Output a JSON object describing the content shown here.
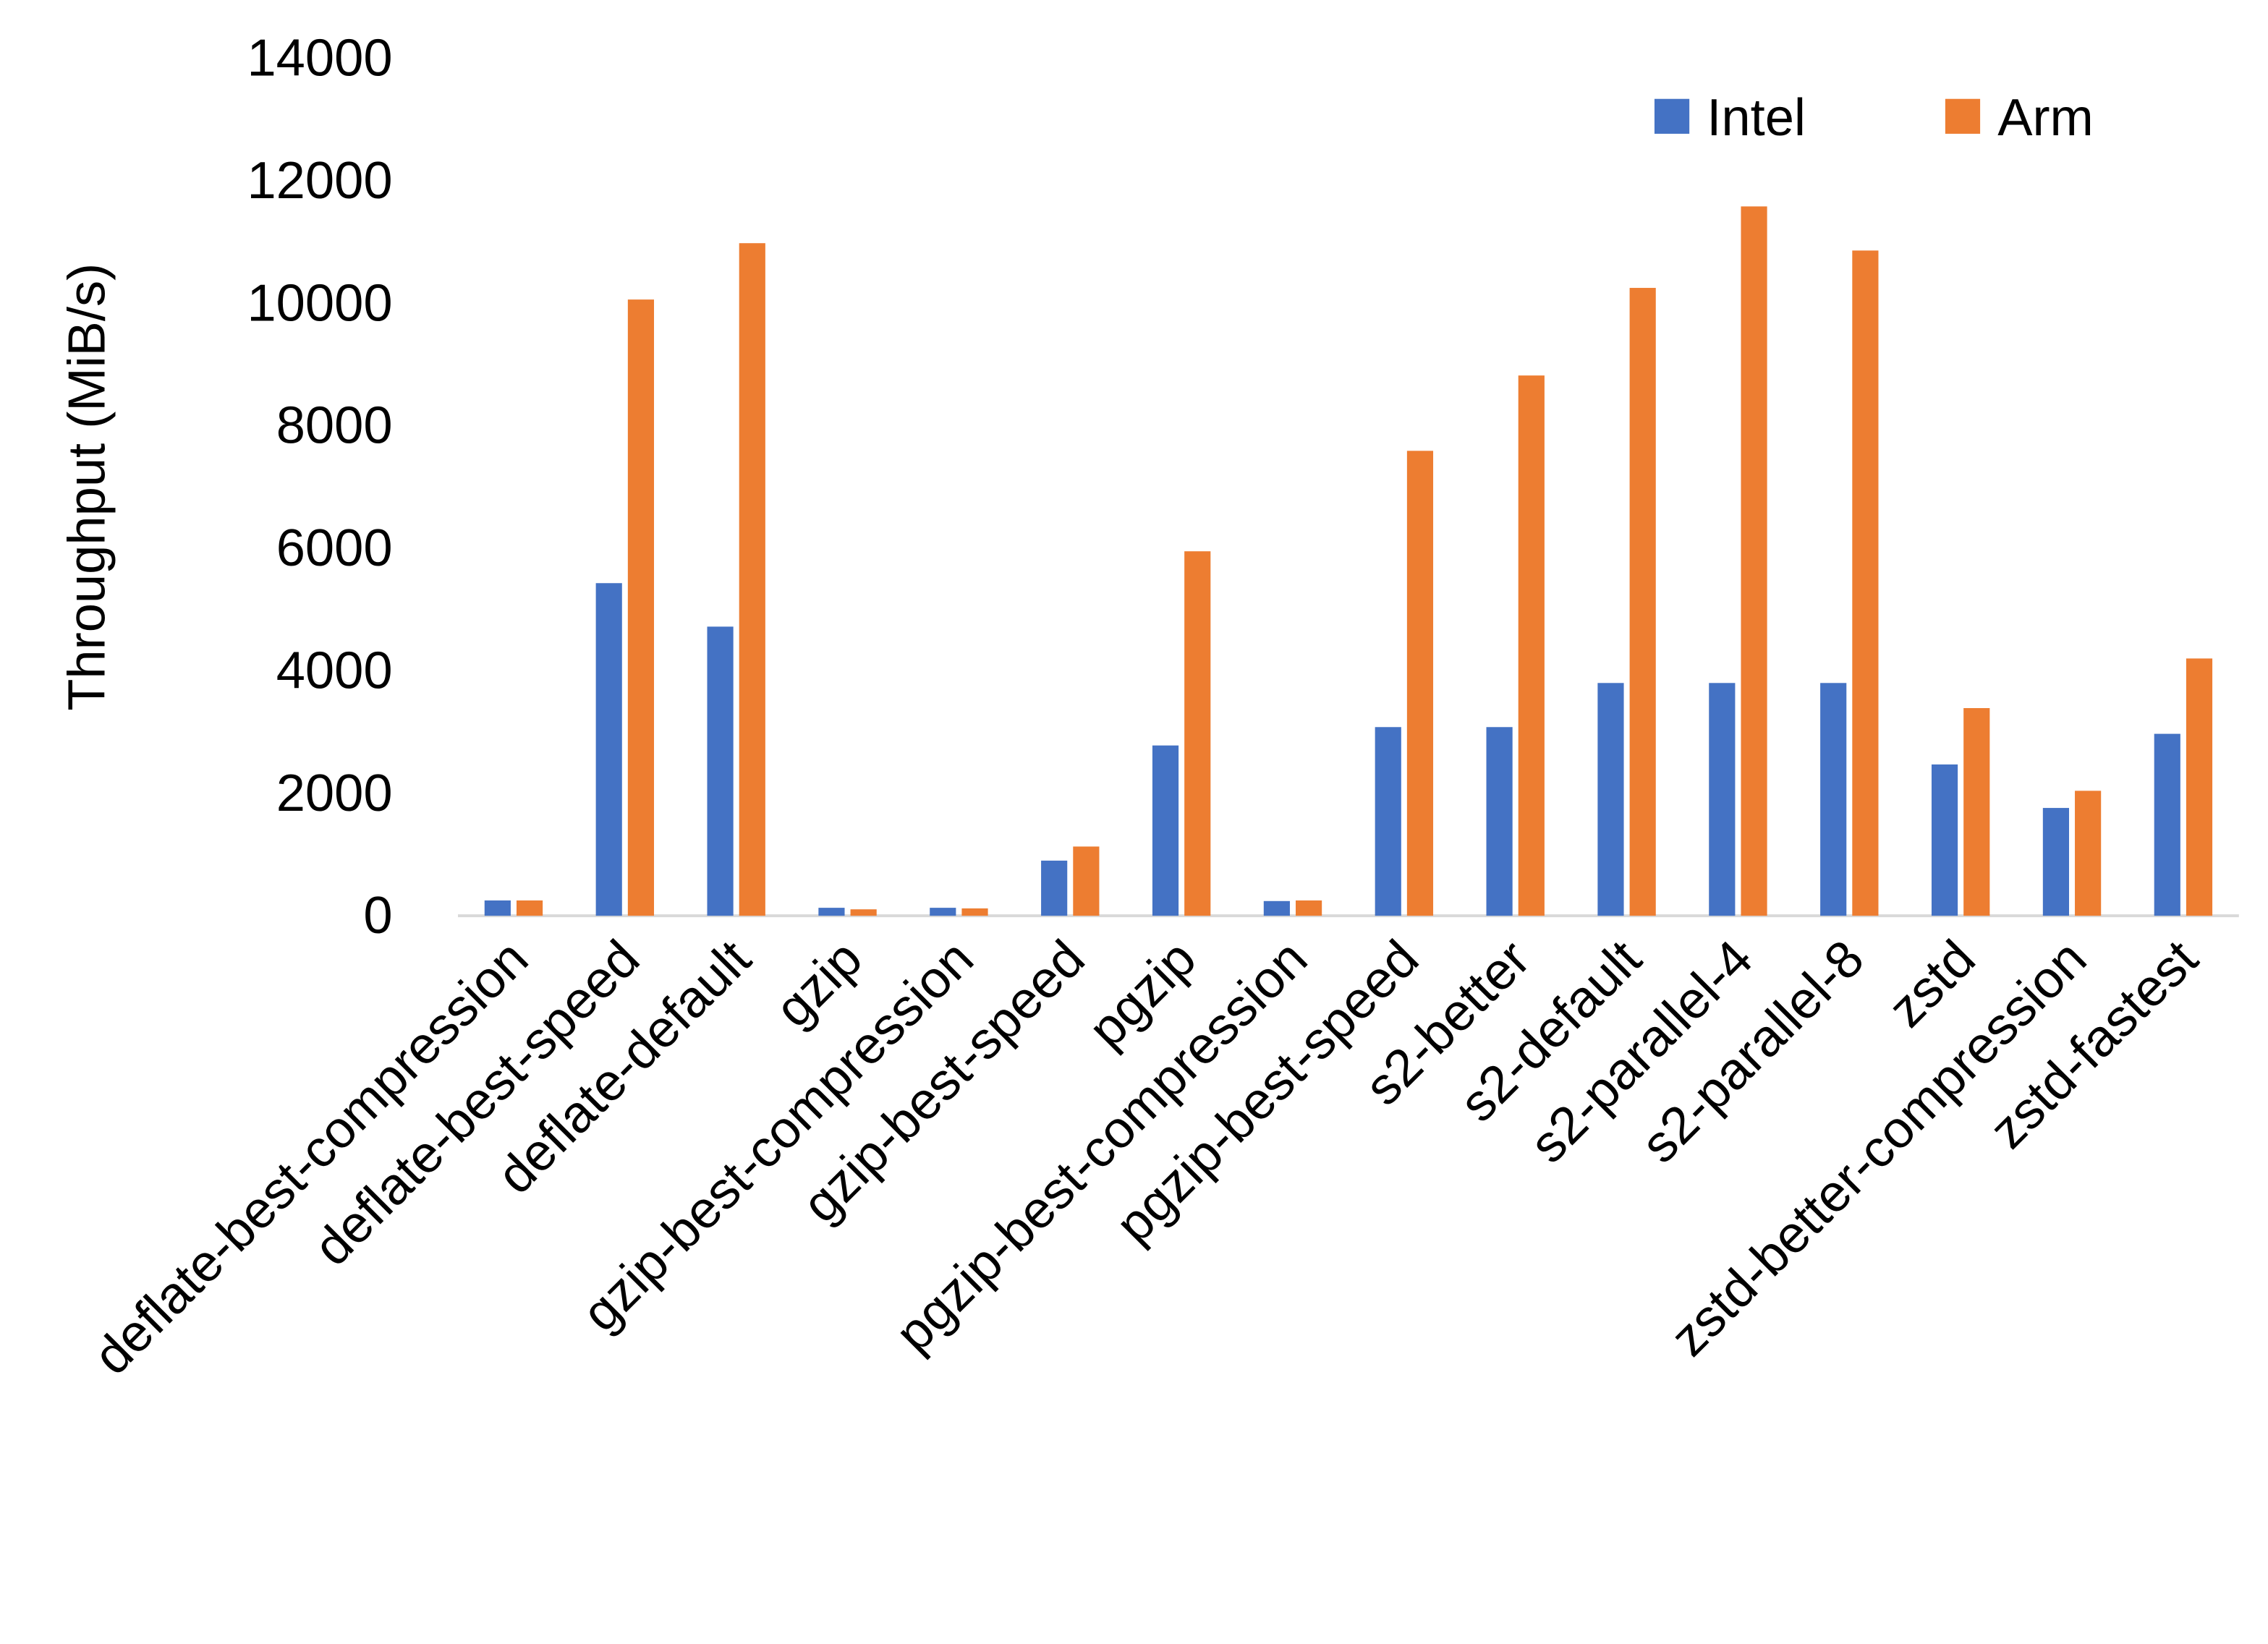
{
  "chart_data": {
    "type": "bar",
    "title": "",
    "xlabel": "",
    "ylabel": "Throughput (MiB/s)",
    "ylim": [
      0,
      14000
    ],
    "yticks": [
      0,
      2000,
      4000,
      6000,
      8000,
      10000,
      12000,
      14000
    ],
    "grid": false,
    "legend_position": "top-right",
    "categories": [
      "deflate-best-compression",
      "deflate-best-speed",
      "deflate-default",
      "gzip",
      "gzip-best-compression",
      "gzip-best-speed",
      "pgzip",
      "pgzip-best-compression",
      "pgzip-best-speed",
      "s2-better",
      "s2-default",
      "s2-parallel-4",
      "s2-parallel-8",
      "zstd",
      "zstd-better-compression",
      "zstd-fastest"
    ],
    "series": [
      {
        "name": "Intel",
        "color": "#4472C4",
        "values": [
          250,
          5430,
          4720,
          130,
          130,
          900,
          2780,
          240,
          3080,
          3080,
          3800,
          3800,
          3800,
          2470,
          1760,
          2970
        ]
      },
      {
        "name": "Arm",
        "color": "#ED7D31",
        "values": [
          250,
          10060,
          10980,
          105,
          120,
          1130,
          5950,
          250,
          7590,
          8820,
          10250,
          11580,
          10860,
          3390,
          2040,
          4200
        ]
      }
    ]
  }
}
